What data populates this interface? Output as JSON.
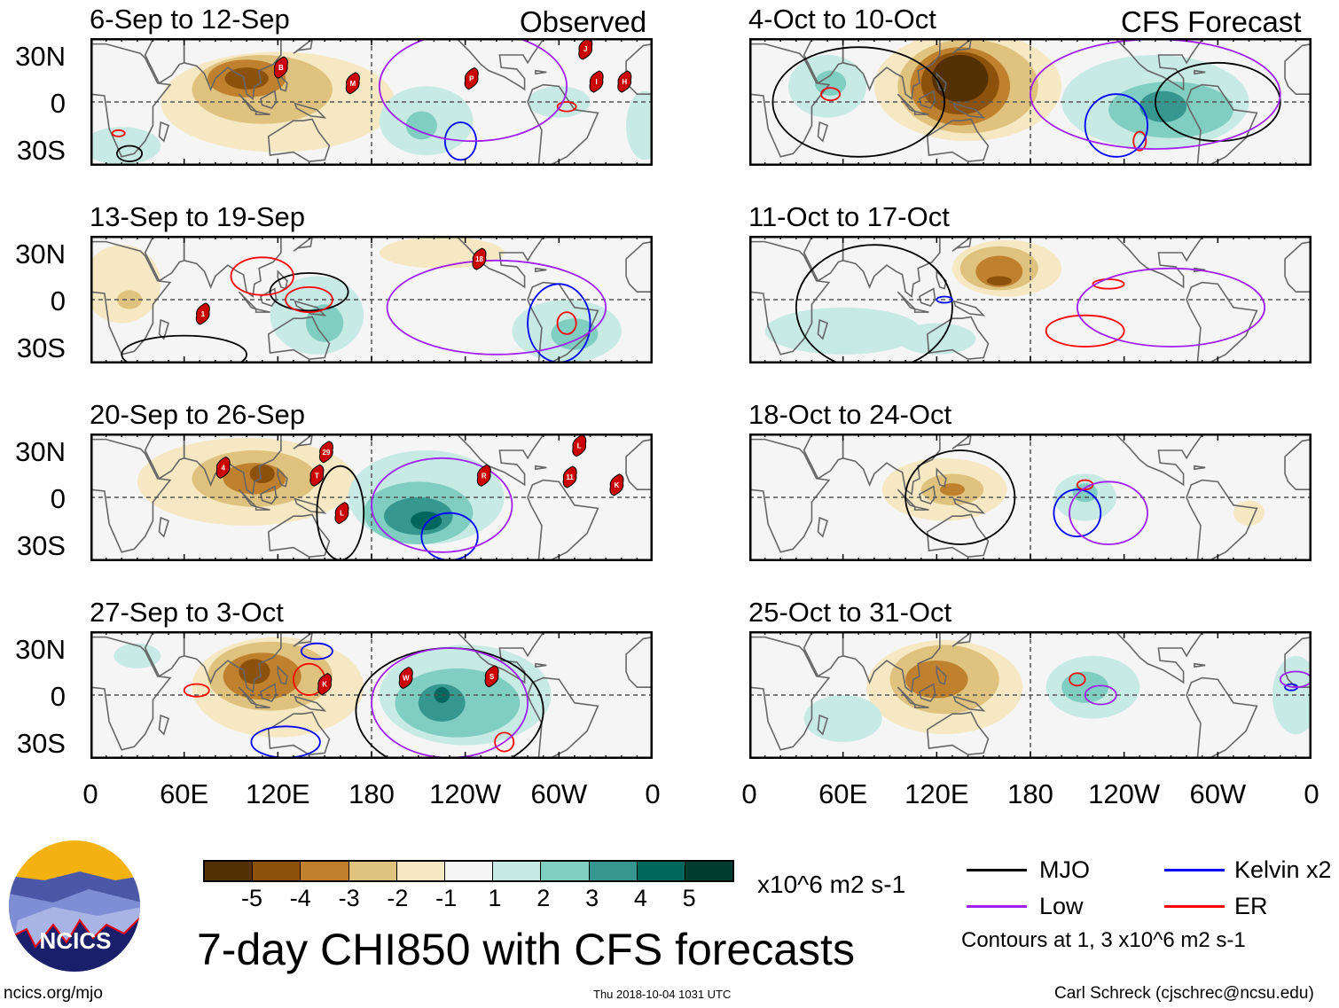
{
  "colorbar": {
    "levels": [
      "-5",
      "-4",
      "-3",
      "-2",
      "-1",
      "1",
      "2",
      "3",
      "4",
      "5"
    ],
    "colors": [
      "#543005",
      "#8c510a",
      "#bf812d",
      "#dfc27d",
      "#f6e8c3",
      "#f5f5f5",
      "#c7eae5",
      "#80cdc1",
      "#35978f",
      "#01665e",
      "#003c30"
    ],
    "units": "x10^6 m2 s-1"
  },
  "headers": {
    "observed": "Observed",
    "forecast": "CFS Forecast"
  },
  "yticks": [
    "30N",
    "0",
    "30S"
  ],
  "xticks": [
    "0",
    "60E",
    "120E",
    "180",
    "120W",
    "60W",
    "0"
  ],
  "title": "7-day CHI850 with CFS forecasts",
  "legend": {
    "mjo": "MJO",
    "kelvin": "Kelvin x2",
    "low": "Low",
    "er": "ER",
    "note": "Contours at 1, 3 x10^6 m2 s-1",
    "colors": {
      "mjo": "#000000",
      "kelvin": "#0000ff",
      "low": "#a020f0",
      "er": "#ff0000"
    }
  },
  "logo": {
    "text": "NCICS"
  },
  "footer": {
    "url": "ncics.org/mjo",
    "timestamp": "Thu 2018-10-04 1031 UTC",
    "author": "Carl Schreck (cjschrec@ncsu.edu)"
  },
  "panels": [
    {
      "title": "6-Sep to 12-Sep",
      "blobs": [
        [
          120,
          0,
          75,
          32,
          -1
        ],
        [
          110,
          8,
          45,
          22,
          -2
        ],
        [
          100,
          15,
          25,
          12,
          -3
        ],
        [
          100,
          15,
          14,
          7,
          -4
        ],
        [
          215,
          -12,
          30,
          22,
          1
        ],
        [
          212,
          -15,
          10,
          9,
          2
        ],
        [
          20,
          -28,
          25,
          12,
          1
        ],
        [
          300,
          0,
          20,
          10,
          1
        ],
        [
          355,
          -15,
          12,
          22,
          1
        ]
      ],
      "contours": [
        [
          "mjo",
          25,
          -33,
          8,
          5
        ],
        [
          "kelvin",
          237,
          -25,
          10,
          12
        ],
        [
          "er",
          18,
          -20,
          4,
          2
        ],
        [
          "er",
          305,
          -3,
          6,
          3
        ],
        [
          "low",
          245,
          10,
          60,
          35
        ]
      ],
      "storms": [
        [
          "B",
          122,
          22
        ],
        [
          "M",
          168,
          12
        ],
        [
          "P",
          244,
          15
        ],
        [
          "J",
          317,
          34
        ],
        [
          "I",
          324,
          13
        ],
        [
          "H",
          342,
          13
        ]
      ]
    },
    {
      "title": "13-Sep to 19-Sep",
      "blobs": [
        [
          20,
          10,
          25,
          25,
          -1
        ],
        [
          25,
          0,
          8,
          6,
          -2
        ],
        [
          145,
          -10,
          30,
          25,
          1
        ],
        [
          150,
          -15,
          12,
          12,
          2
        ],
        [
          305,
          -20,
          35,
          20,
          1
        ],
        [
          310,
          -22,
          15,
          10,
          2
        ],
        [
          225,
          30,
          40,
          10,
          -1
        ]
      ],
      "contours": [
        [
          "mjo",
          140,
          5,
          25,
          12
        ],
        [
          "mjo",
          60,
          -35,
          40,
          12
        ],
        [
          "er",
          110,
          15,
          20,
          12
        ],
        [
          "er",
          140,
          0,
          15,
          8
        ],
        [
          "er",
          305,
          -15,
          6,
          7
        ],
        [
          "kelvin",
          300,
          -15,
          20,
          25
        ],
        [
          "low",
          260,
          -5,
          70,
          30
        ]
      ],
      "storms": [
        [
          "1",
          72,
          -9
        ],
        [
          "18",
          249,
          26
        ]
      ]
    },
    {
      "title": "20-Sep to 26-Sep",
      "blobs": [
        [
          100,
          10,
          70,
          28,
          -1
        ],
        [
          105,
          12,
          40,
          18,
          -2
        ],
        [
          105,
          12,
          20,
          10,
          -3
        ],
        [
          110,
          15,
          8,
          6,
          -4
        ],
        [
          215,
          0,
          50,
          30,
          1
        ],
        [
          210,
          -10,
          35,
          20,
          2
        ],
        [
          210,
          -12,
          22,
          12,
          3
        ],
        [
          215,
          -15,
          10,
          6,
          4
        ]
      ],
      "contours": [
        [
          "mjo",
          160,
          -10,
          15,
          30
        ],
        [
          "kelvin",
          230,
          -25,
          18,
          15
        ],
        [
          "low",
          225,
          -5,
          45,
          30
        ]
      ],
      "storms": [
        [
          "4",
          85,
          19
        ],
        [
          "29",
          151,
          29
        ],
        [
          "T",
          145,
          14
        ],
        [
          "L",
          161,
          -10
        ],
        [
          "R",
          252,
          14
        ],
        [
          "L",
          313,
          33
        ],
        [
          "11",
          307,
          13
        ],
        [
          "K",
          337,
          8
        ]
      ]
    },
    {
      "title": "27-Sep to 3-Oct",
      "blobs": [
        [
          120,
          5,
          55,
          32,
          -1
        ],
        [
          115,
          12,
          40,
          22,
          -2
        ],
        [
          110,
          12,
          25,
          15,
          -3
        ],
        [
          105,
          15,
          10,
          8,
          -4
        ],
        [
          240,
          0,
          55,
          32,
          1
        ],
        [
          235,
          -5,
          40,
          22,
          2
        ],
        [
          225,
          -5,
          15,
          12,
          3
        ],
        [
          225,
          0,
          5,
          5,
          4
        ],
        [
          30,
          25,
          15,
          8,
          1
        ]
      ],
      "contours": [
        [
          "er",
          68,
          3,
          8,
          4
        ],
        [
          "er",
          140,
          10,
          10,
          10
        ],
        [
          "kelvin",
          125,
          -30,
          22,
          10
        ],
        [
          "kelvin",
          145,
          28,
          10,
          5
        ],
        [
          "er",
          265,
          -30,
          6,
          6
        ],
        [
          "mjo",
          230,
          -10,
          60,
          40
        ],
        [
          "low",
          230,
          -5,
          50,
          35
        ]
      ],
      "storms": [
        [
          "K",
          150,
          7
        ],
        [
          "W",
          202,
          11
        ],
        [
          "S",
          257,
          12
        ]
      ]
    },
    {
      "title": "4-Oct to 10-Oct",
      "blobs": [
        [
          140,
          10,
          60,
          35,
          -1
        ],
        [
          140,
          10,
          45,
          30,
          -2
        ],
        [
          135,
          10,
          32,
          25,
          -3
        ],
        [
          135,
          12,
          25,
          20,
          -4
        ],
        [
          135,
          15,
          18,
          15,
          -5
        ],
        [
          50,
          10,
          25,
          20,
          1
        ],
        [
          52,
          12,
          10,
          8,
          2
        ],
        [
          260,
          0,
          60,
          30,
          1
        ],
        [
          270,
          -5,
          40,
          18,
          2
        ],
        [
          265,
          -3,
          15,
          10,
          3
        ]
      ],
      "contours": [
        [
          "er",
          52,
          5,
          6,
          4
        ],
        [
          "er",
          250,
          -25,
          4,
          6
        ],
        [
          "mjo",
          70,
          0,
          55,
          35
        ],
        [
          "mjo",
          300,
          0,
          40,
          25
        ],
        [
          "kelvin",
          235,
          -15,
          20,
          20
        ],
        [
          "low",
          260,
          5,
          80,
          35
        ]
      ],
      "storms": []
    },
    {
      "title": "11-Oct to 17-Oct",
      "blobs": [
        [
          165,
          20,
          35,
          18,
          -1
        ],
        [
          160,
          20,
          25,
          14,
          -2
        ],
        [
          160,
          18,
          15,
          10,
          -3
        ],
        [
          160,
          12,
          8,
          3,
          -4
        ],
        [
          60,
          -20,
          50,
          15,
          1
        ],
        [
          120,
          -25,
          25,
          10,
          1
        ]
      ],
      "contours": [
        [
          "mjo",
          80,
          -5,
          50,
          40
        ],
        [
          "er",
          215,
          -20,
          25,
          10
        ],
        [
          "er",
          230,
          10,
          10,
          3
        ],
        [
          "kelvin",
          125,
          0,
          5,
          2
        ],
        [
          "low",
          270,
          -5,
          60,
          25
        ]
      ],
      "storms": []
    },
    {
      "title": "18-Oct to 24-Oct",
      "blobs": [
        [
          125,
          5,
          40,
          20,
          -1
        ],
        [
          130,
          5,
          20,
          10,
          -2
        ],
        [
          130,
          5,
          8,
          4,
          -3
        ],
        [
          215,
          0,
          20,
          15,
          1
        ],
        [
          215,
          3,
          8,
          6,
          2
        ],
        [
          320,
          -10,
          10,
          8,
          -1
        ]
      ],
      "contours": [
        [
          "mjo",
          135,
          0,
          35,
          30
        ],
        [
          "kelvin",
          210,
          -10,
          15,
          15
        ],
        [
          "er",
          215,
          8,
          5,
          3
        ],
        [
          "low",
          230,
          -10,
          25,
          20
        ]
      ],
      "storms": []
    },
    {
      "title": "25-Oct to 31-Oct",
      "blobs": [
        [
          125,
          5,
          50,
          30,
          -1
        ],
        [
          125,
          10,
          35,
          22,
          -2
        ],
        [
          120,
          10,
          20,
          12,
          -3
        ],
        [
          220,
          5,
          30,
          20,
          1
        ],
        [
          215,
          5,
          15,
          10,
          2
        ],
        [
          60,
          -15,
          25,
          15,
          1
        ],
        [
          350,
          0,
          15,
          25,
          1
        ]
      ],
      "contours": [
        [
          "er",
          210,
          10,
          5,
          4
        ],
        [
          "low",
          225,
          0,
          10,
          6
        ],
        [
          "kelvin",
          347,
          5,
          4,
          2
        ],
        [
          "low",
          350,
          10,
          10,
          5
        ]
      ],
      "storms": []
    }
  ]
}
